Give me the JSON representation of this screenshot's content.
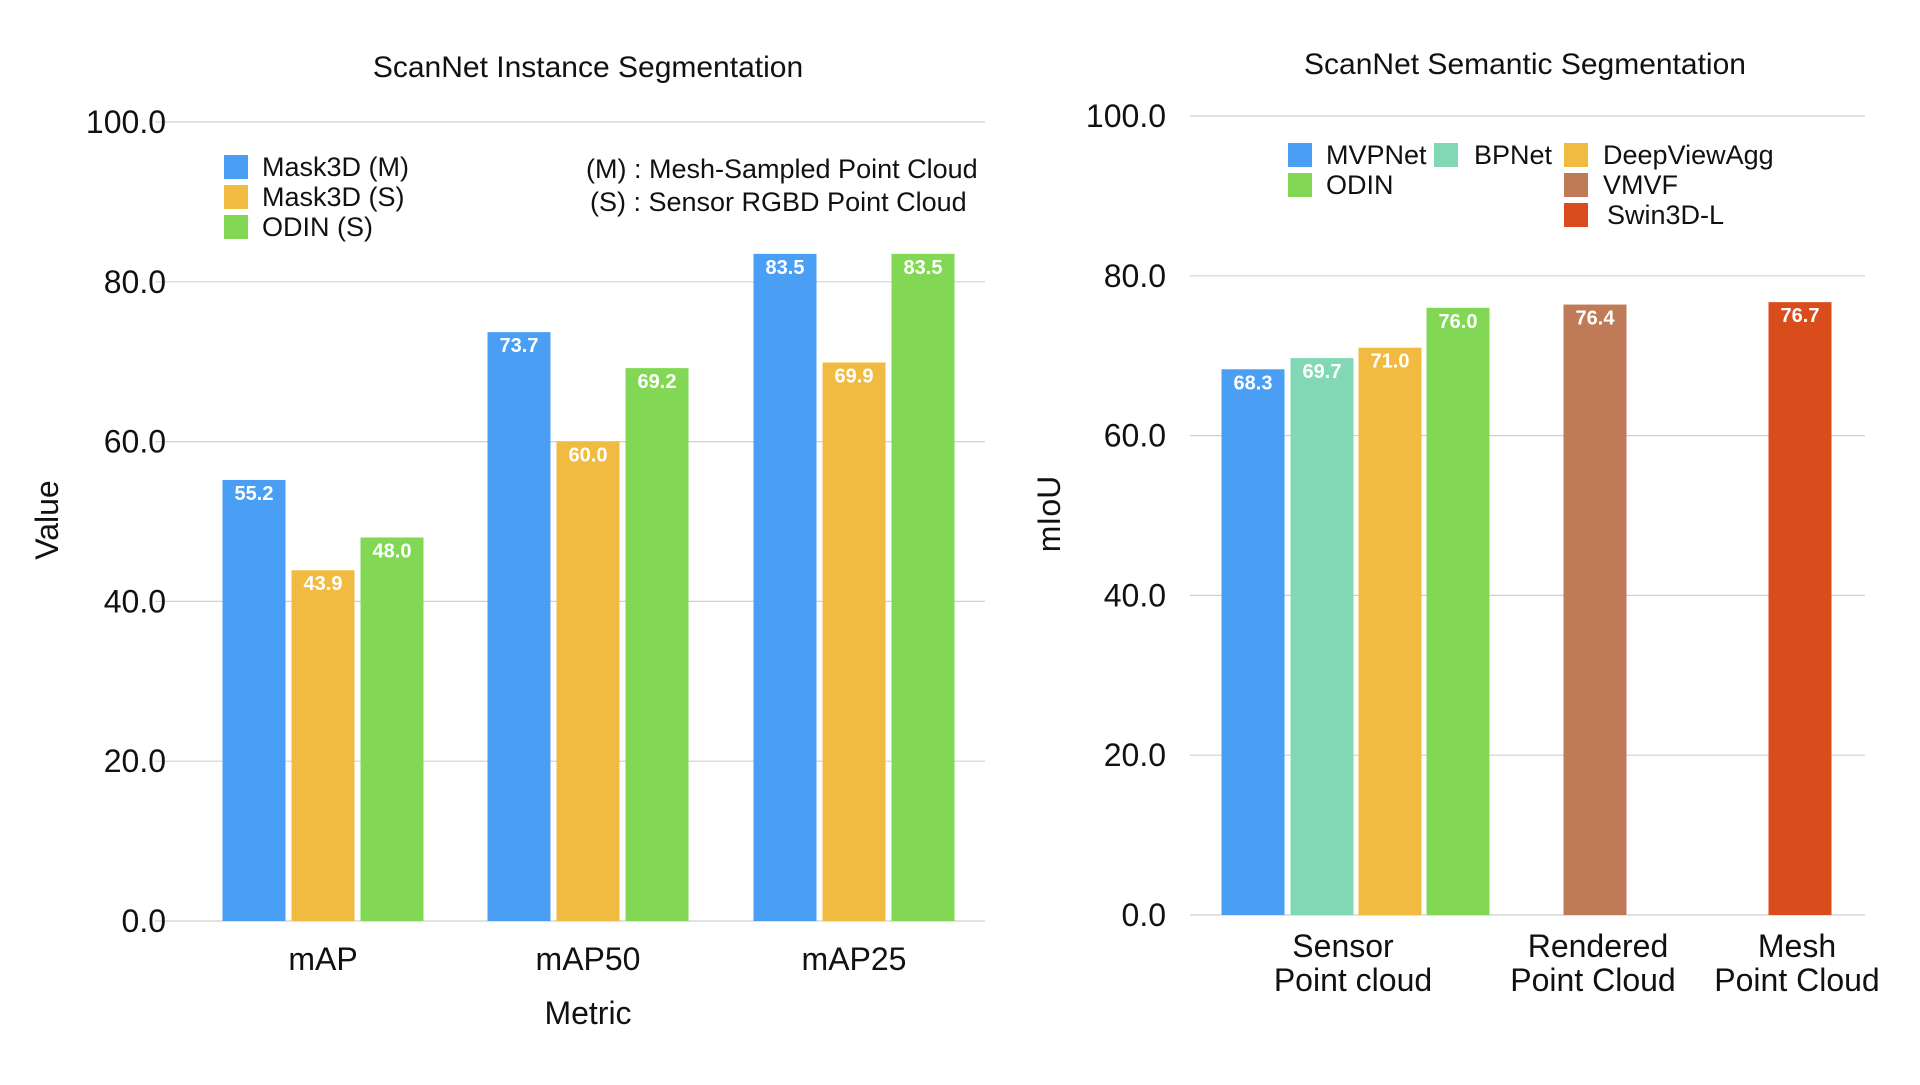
{
  "chart_data": [
    {
      "type": "bar",
      "title": "ScanNet Instance Segmentation",
      "xlabel": "Metric",
      "ylabel": "Value",
      "ylim": [
        0,
        100
      ],
      "yticks": [
        "0.0",
        "20.0",
        "40.0",
        "60.0",
        "80.0",
        "100.0"
      ],
      "grid": true,
      "legend_position": "top-left",
      "categories": [
        "mAP",
        "mAP50",
        "mAP25"
      ],
      "series": [
        {
          "name": "Mask3D (M)",
          "color": "#4A9FF5",
          "values": [
            55.2,
            73.7,
            83.5
          ],
          "labels": [
            "55.2",
            "73.7",
            "83.5"
          ]
        },
        {
          "name": "Mask3D (S)",
          "color": "#F0BB40",
          "values": [
            43.9,
            60.0,
            69.9
          ],
          "labels": [
            "43.9",
            "60.0",
            "69.9"
          ]
        },
        {
          "name": "ODIN (S)",
          "color": "#82D854",
          "values": [
            48.0,
            69.2,
            83.5
          ],
          "labels": [
            "48.0",
            "69.2",
            "83.5"
          ]
        }
      ],
      "notes": [
        "(M) : Mesh-Sampled Point Cloud",
        "(S) : Sensor RGBD Point Cloud"
      ]
    },
    {
      "type": "bar",
      "title": "ScanNet Semantic Segmentation",
      "xlabel": "",
      "ylabel": "mIoU",
      "ylim": [
        0,
        100
      ],
      "yticks": [
        "0.0",
        "20.0",
        "40.0",
        "60.0",
        "80.0",
        "100.0"
      ],
      "grid": true,
      "legend_position": "top",
      "groups": [
        {
          "label": [
            "Sensor",
            "Point cloud"
          ],
          "members": [
            "MVPNet",
            "BPNet",
            "DeepViewAgg",
            "ODIN"
          ]
        },
        {
          "label": [
            "Rendered",
            "Point Cloud"
          ],
          "members": [
            "VMVF"
          ]
        },
        {
          "label": [
            "Mesh",
            "Point Cloud"
          ],
          "members": [
            "Swin3D-L"
          ]
        }
      ],
      "series": [
        {
          "name": "MVPNet",
          "color": "#4A9FF5",
          "value": 68.3,
          "label": "68.3"
        },
        {
          "name": "BPNet",
          "color": "#82D8B4",
          "value": 69.7,
          "label": "69.7"
        },
        {
          "name": "DeepViewAgg",
          "color": "#F0BB40",
          "value": 71.0,
          "label": "71.0"
        },
        {
          "name": "ODIN",
          "color": "#82D854",
          "value": 76.0,
          "label": "76.0"
        },
        {
          "name": "VMVF",
          "color": "#BF7B58",
          "value": 76.4,
          "label": "76.4"
        },
        {
          "name": "Swin3D-L",
          "color": "#D94C1C",
          "value": 76.7,
          "label": "76.7"
        }
      ]
    }
  ]
}
